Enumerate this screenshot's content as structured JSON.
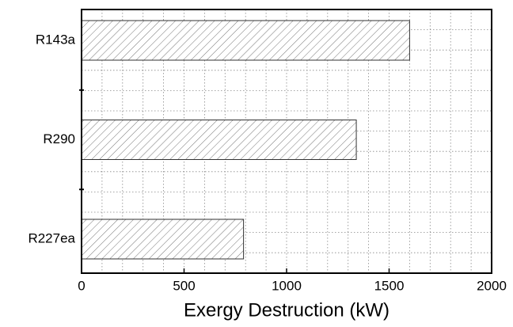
{
  "chart_data": {
    "type": "barh",
    "categories": [
      "R143a",
      "R290",
      "R227ea"
    ],
    "values": [
      1600,
      1340,
      790
    ],
    "color": "#ffffff",
    "hatch": "#666666",
    "xlabel": "Exergy Destruction (kW)",
    "xlim": [
      0,
      2000
    ],
    "xticks": [
      0,
      500,
      1000,
      1500,
      2000
    ],
    "grid_xticks": [
      100,
      200,
      300,
      400,
      500,
      600,
      700,
      800,
      900,
      1000,
      1100,
      1200,
      1300,
      1400,
      1500,
      1600,
      1700,
      1800,
      1900
    ],
    "grid": true
  }
}
